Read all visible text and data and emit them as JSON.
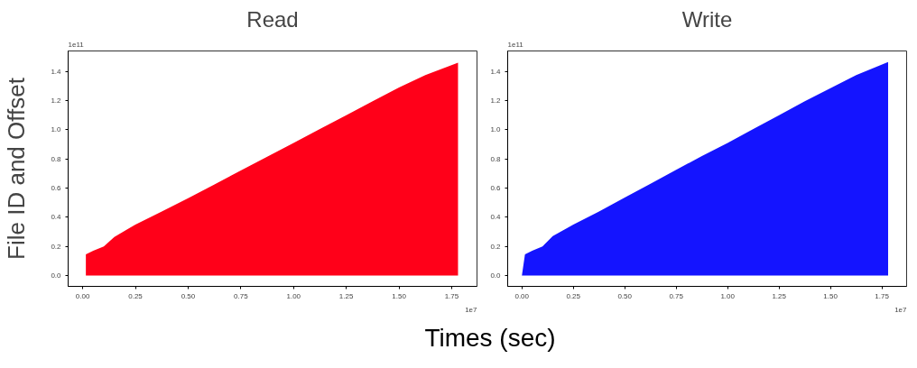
{
  "chart_data": [
    {
      "type": "area",
      "title": "Read",
      "ylabel": "File ID and Offset",
      "xlabel": "Times (sec)",
      "annotations": [
        "1e11",
        "1e7"
      ],
      "xlim": [
        -0.069,
        1.87
      ],
      "ylim": [
        -0.074,
        1.54
      ],
      "xticks": [
        {
          "value": 0,
          "label": "0.00"
        },
        {
          "value": 0.25,
          "label": "0.25"
        },
        {
          "value": 0.5,
          "label": "0.50"
        },
        {
          "value": 0.75,
          "label": "0.75"
        },
        {
          "value": 1,
          "label": "1.00"
        },
        {
          "value": 1.25,
          "label": "1.25"
        },
        {
          "value": 1.5,
          "label": "1.50"
        },
        {
          "value": 1.75,
          "label": "1.75"
        }
      ],
      "yticks": [
        {
          "value": 0,
          "label": "0.0"
        },
        {
          "value": 0.2,
          "label": "0.2"
        },
        {
          "value": 0.4,
          "label": "0.4"
        },
        {
          "value": 0.6,
          "label": "0.6"
        },
        {
          "value": 0.8,
          "label": "0.8"
        },
        {
          "value": 1,
          "label": "1.0"
        },
        {
          "value": 1.2,
          "label": "1.2"
        },
        {
          "value": 1.4,
          "label": "1.4"
        }
      ],
      "grid": false,
      "series": [
        {
          "color": "#ff0019",
          "x": [
            0.015,
            0.05,
            0.1,
            0.15,
            0.25,
            0.375,
            0.5,
            0.625,
            0.75,
            0.875,
            1,
            1.125,
            1.25,
            1.375,
            1.5,
            1.625,
            1.78
          ],
          "values": [
            0.145,
            0.17,
            0.2,
            0.265,
            0.35,
            0.44,
            0.53,
            0.625,
            0.72,
            0.815,
            0.91,
            1.005,
            1.1,
            1.195,
            1.29,
            1.375,
            1.46
          ]
        }
      ]
    },
    {
      "type": "area",
      "title": "Write",
      "annotations": [
        "1e11",
        "1e7"
      ],
      "xlim": [
        -0.069,
        1.87
      ],
      "ylim": [
        -0.074,
        1.54
      ],
      "xticks": [
        {
          "value": 0,
          "label": "0.00"
        },
        {
          "value": 0.25,
          "label": "0.25"
        },
        {
          "value": 0.5,
          "label": "0.50"
        },
        {
          "value": 0.75,
          "label": "0.75"
        },
        {
          "value": 1,
          "label": "1.00"
        },
        {
          "value": 1.25,
          "label": "1.25"
        },
        {
          "value": 1.5,
          "label": "1.50"
        },
        {
          "value": 1.75,
          "label": "1.75"
        }
      ],
      "yticks": [
        {
          "value": 0,
          "label": "0.0"
        },
        {
          "value": 0.2,
          "label": "0.2"
        },
        {
          "value": 0.4,
          "label": "0.4"
        },
        {
          "value": 0.6,
          "label": "0.6"
        },
        {
          "value": 0.8,
          "label": "0.8"
        },
        {
          "value": 1,
          "label": "1.0"
        },
        {
          "value": 1.2,
          "label": "1.2"
        },
        {
          "value": 1.4,
          "label": "1.4"
        }
      ],
      "grid": false,
      "series": [
        {
          "color": "#1414ff",
          "x": [
            0,
            0.015,
            0.05,
            0.1,
            0.15,
            0.25,
            0.375,
            0.5,
            0.625,
            0.75,
            0.875,
            1,
            1.125,
            1.25,
            1.375,
            1.5,
            1.625,
            1.78
          ],
          "values": [
            0,
            0.145,
            0.17,
            0.2,
            0.27,
            0.35,
            0.44,
            0.535,
            0.63,
            0.725,
            0.82,
            0.91,
            1.005,
            1.1,
            1.195,
            1.285,
            1.375,
            1.465
          ]
        }
      ]
    }
  ]
}
